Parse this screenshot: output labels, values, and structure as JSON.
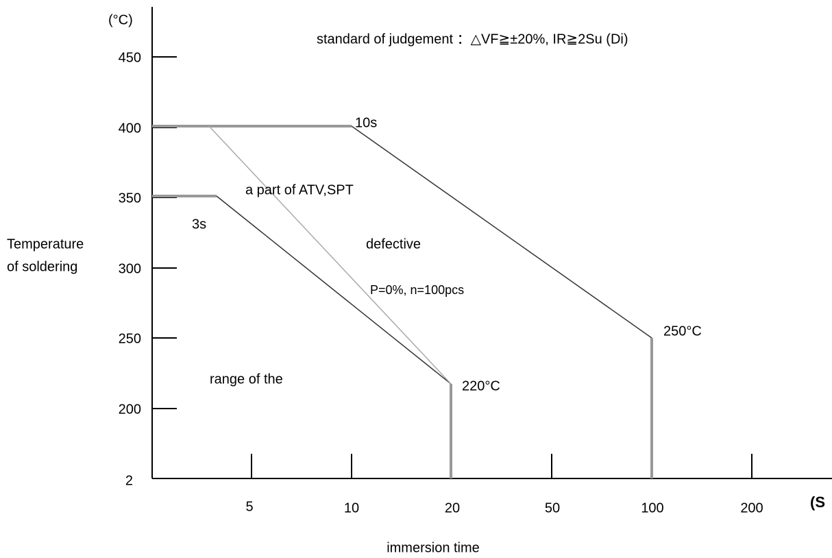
{
  "header": {
    "unit": "(°C)",
    "note": "standard of judgement ：△VF≧±20%, IR≧2Su (Di)"
  },
  "y_axis": {
    "title": [
      "Temperature",
      "of soldering"
    ],
    "labels": [
      "450",
      "400",
      "350",
      "300",
      "250",
      "200",
      "2"
    ]
  },
  "x_axis": {
    "title": "immersion time",
    "unit": "(S",
    "labels": [
      "5",
      "10",
      "20",
      "50",
      "100",
      "200"
    ]
  },
  "annotations": {
    "t10": "10s",
    "t3": "3s",
    "atv": "a part of ATV,SPT",
    "defective": "defective",
    "p": "P=0%, n=100pcs",
    "c250": "250°C",
    "c220": "220°C",
    "range": "range of the"
  }
}
